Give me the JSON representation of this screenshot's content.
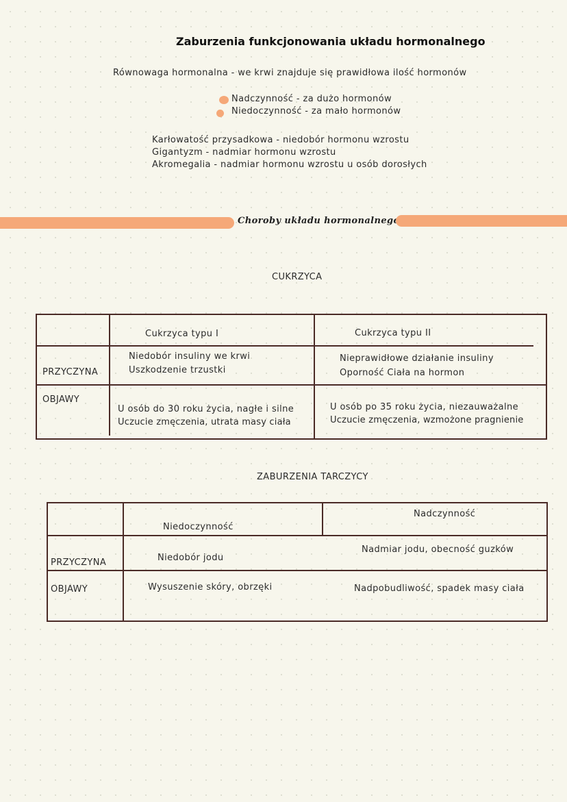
{
  "title": "Zaburzenia funkcjonowania układu hormonalnego",
  "balance": "Równowaga hormonalna -  we krwi znajduje się prawidłowa ilość hormonów",
  "bullets": [
    "Nadczynność - za dużo hormonów",
    "Niedoczynność - za mało hormonów"
  ],
  "growth": [
    "Karłowatość przysadkowa - niedobór hormonu wzrostu",
    "Gigantyzm - nadmiar hormonu wzrostu",
    "Akromegalia - nadmiar hormonu wzrostu u osób dorosłych"
  ],
  "section_title": "Choroby układu hormonalnego",
  "accent_color": "#f5a878",
  "line_color": "#4a2a26",
  "diabetes": {
    "heading": "CUKRZYCA",
    "columns": [
      "Cukrzyca typu I",
      "Cukrzyca typu II"
    ],
    "rows": [
      {
        "label": "PRZYCZYNA",
        "type1": [
          "Niedobór insuliny we krwi",
          "Uszkodzenie trzustki"
        ],
        "type2": [
          "Nieprawidłowe działanie insuliny",
          "Oporność Ciała na hormon"
        ]
      },
      {
        "label": "OBJAWY",
        "type1": [
          "U osób do 30 roku życia, nagłe i silne",
          "Uczucie zmęczenia, utrata masy ciała"
        ],
        "type2": [
          "U osób po 35 roku życia, niezauważalne",
          "Uczucie zmęczenia, wzmożone pragnienie"
        ]
      }
    ]
  },
  "thyroid": {
    "heading": "ZABURZENIA TARCZYCY",
    "columns": [
      "Niedoczynność",
      "Nadczynność"
    ],
    "rows": [
      {
        "label": "PRZYCZYNA",
        "hypo": "Niedobór jodu",
        "hyper": "Nadmiar jodu, obecność guzków"
      },
      {
        "label": "OBJAWY",
        "hypo": "Wysuszenie skóry, obrzęki",
        "hyper": "Nadpobudliwość, spadek masy ciała"
      }
    ]
  }
}
